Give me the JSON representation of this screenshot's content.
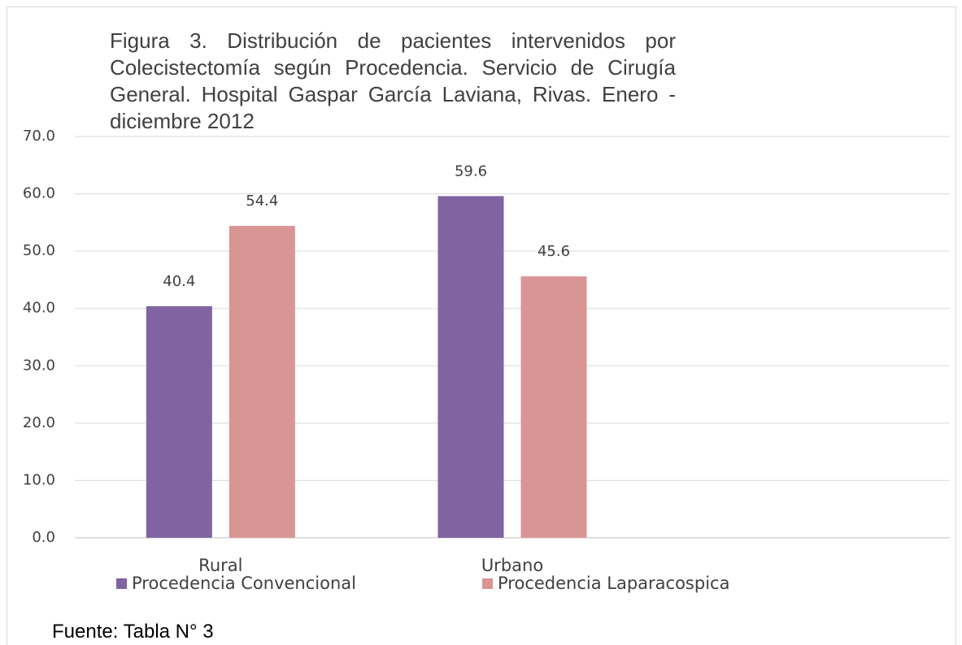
{
  "chart_data": {
    "type": "bar",
    "title": "Figura 3. Distribución de pacientes intervenidos por Colecistectomía según Procedencia. Servicio de Cirugía General. Hospital Gaspar García Laviana, Rivas. Enero - diciembre 2012",
    "categories": [
      "Rural",
      "Urbano",
      null
    ],
    "series": [
      {
        "name": "Procedencia Convencional",
        "color": "#8064a2",
        "values": [
          40.4,
          59.6,
          null
        ]
      },
      {
        "name": "Procedencia Laparacospica",
        "color": "#d99594",
        "values": [
          54.4,
          45.6,
          null
        ]
      }
    ],
    "ylim": [
      0,
      70
    ],
    "yticks": [
      {
        "value": 0,
        "label": "0.0"
      },
      {
        "value": 10,
        "label": "10.0"
      },
      {
        "value": 20,
        "label": "20.0"
      },
      {
        "value": 30,
        "label": "30.0"
      },
      {
        "value": 40,
        "label": "40.0"
      },
      {
        "value": 50,
        "label": "50.0"
      },
      {
        "value": 60,
        "label": "60.0"
      },
      {
        "value": 70,
        "label": "70.0"
      }
    ],
    "grid": true,
    "legend": "bottom",
    "annotation": "Fuente: Tabla N° 3"
  }
}
